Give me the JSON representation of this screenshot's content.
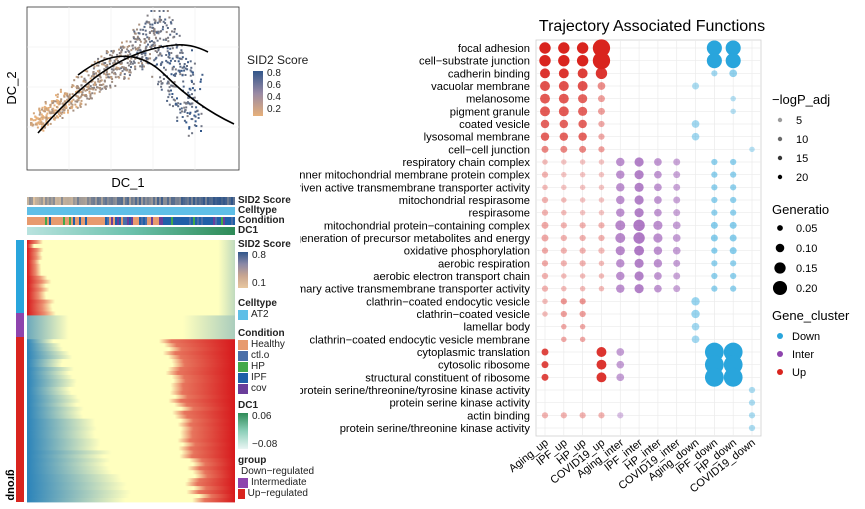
{
  "colors": {
    "down": "#29a5dc",
    "inter": "#8e44ad",
    "up": "#d9241e",
    "grad_low": "#e7b07a",
    "grad_high": "#31568a",
    "heat_blue": "#2b83ba",
    "heat_yellow": "#ffffbf",
    "heat_red": "#d7191c",
    "healthy": "#e79a6e",
    "ctlo": "#4a6ea8",
    "hp": "#43a84a",
    "ipf": "#1f5fa8",
    "cov": "#6a3d9a",
    "at2": "#5fbfe7"
  },
  "scatter": {
    "xlabel": "DC_1",
    "ylabel": "DC_2",
    "legend_title": "SID2 Score",
    "legend_ticks": [
      "0.8",
      "0.6",
      "0.4",
      "0.2"
    ]
  },
  "heatmap": {
    "annotation_labels": [
      "SID2 Score",
      "Celltype",
      "Condition",
      "DC1"
    ],
    "group_axis_label": "group",
    "legend": {
      "sid2": {
        "title": "SID2 Score",
        "ticks": [
          "0.8",
          "0.1"
        ]
      },
      "celltype": {
        "title": "Celltype",
        "items": [
          "AT2"
        ]
      },
      "condition": {
        "title": "Condition",
        "items": [
          "Healthy",
          "ctl.o",
          "HP",
          "IPF",
          "cov"
        ]
      },
      "dc1": {
        "title": "DC1",
        "ticks": [
          "0.06",
          "−0.08"
        ]
      },
      "group": {
        "title": "group",
        "items": [
          "Down−regulated",
          "Intermediate",
          "Up−regulated"
        ]
      }
    }
  },
  "legends": {
    "size_title": "−logP_adj",
    "size_ticks": [
      "5",
      "10",
      "15",
      "20"
    ],
    "gen_title": "Generatio",
    "gen_ticks": [
      "0.05",
      "0.10",
      "0.15",
      "0.20"
    ],
    "cluster_title": "Gene_cluster",
    "cluster_items": [
      "Down",
      "Inter",
      "Up"
    ]
  },
  "chart_data": {
    "type": "scatter",
    "title": "Trajectory Associated Functions",
    "columns": [
      "Aging_up",
      "IPF_up",
      "HP_up",
      "COVID19_up",
      "Aging_inter",
      "IPF_inter",
      "HP_inter",
      "COVID19_inter",
      "Aging_down",
      "IPF_down",
      "HP_down",
      "COVID19_down"
    ],
    "column_cluster": [
      "Up",
      "Up",
      "Up",
      "Up",
      "Inter",
      "Inter",
      "Inter",
      "Inter",
      "Down",
      "Down",
      "Down",
      "Down"
    ],
    "terms": [
      "focal adhesion",
      "cell−substrate junction",
      "cadherin binding",
      "vacuolar membrane",
      "melanosome",
      "pigment granule",
      "coated vesicle",
      "lysosomal membrane",
      "cell−cell junction",
      "respiratory chain complex",
      "inner mitochondrial membrane protein complex",
      "oxidoreduction−driven active transmembrane transporter activity",
      "mitochondrial respirasome",
      "respirasome",
      "mitochondrial protein−containing complex",
      "generation of precursor metabolites and energy",
      "oxidative phosphorylation",
      "aerobic respiration",
      "aerobic electron transport chain",
      "primary active transmembrane transporter activity",
      "clathrin−coated endocytic vesicle",
      "clathrin−coated vesicle",
      "lamellar body",
      "clathrin−coated endocytic vesicle membrane",
      "cytoplasmic translation",
      "cytosolic ribosome",
      "structural constituent of ribosome",
      "protein serine/threonine/tyrosine kinase activity",
      "protein serine kinase activity",
      "actin binding",
      "protein serine/threonine kinase activity"
    ],
    "generatio": [
      [
        0.1,
        0.1,
        0.1,
        0.18,
        0,
        0,
        0,
        0,
        0,
        0.15,
        0.15,
        0
      ],
      [
        0.1,
        0.1,
        0.1,
        0.18,
        0,
        0,
        0,
        0,
        0,
        0.15,
        0.15,
        0
      ],
      [
        0.08,
        0.08,
        0.08,
        0.1,
        0,
        0,
        0,
        0,
        0,
        0.03,
        0.05,
        0
      ],
      [
        0.08,
        0.08,
        0.08,
        0.05,
        0,
        0,
        0,
        0,
        0.04,
        0,
        0,
        0
      ],
      [
        0.08,
        0.08,
        0.07,
        0.04,
        0,
        0,
        0,
        0,
        0,
        0,
        0.02,
        0
      ],
      [
        0.08,
        0.08,
        0.07,
        0.04,
        0,
        0,
        0,
        0,
        0,
        0,
        0.02,
        0
      ],
      [
        0.06,
        0.06,
        0.06,
        0.03,
        0,
        0,
        0,
        0,
        0.05,
        0,
        0,
        0
      ],
      [
        0.06,
        0.06,
        0.06,
        0.03,
        0,
        0,
        0,
        0,
        0.05,
        0,
        0,
        0
      ],
      [
        0.04,
        0.04,
        0.04,
        0.03,
        0,
        0,
        0,
        0,
        0,
        0,
        0,
        0.02
      ],
      [
        0.02,
        0.02,
        0.02,
        0.02,
        0.06,
        0.07,
        0.05,
        0.04,
        0,
        0.03,
        0.03,
        0
      ],
      [
        0.03,
        0.02,
        0.02,
        0.02,
        0.06,
        0.07,
        0.05,
        0.04,
        0,
        0.03,
        0.03,
        0
      ],
      [
        0.02,
        0.02,
        0.02,
        0.02,
        0.06,
        0.07,
        0.05,
        0.04,
        0,
        0.03,
        0.03,
        0
      ],
      [
        0.03,
        0.02,
        0.02,
        0.02,
        0.06,
        0.07,
        0.05,
        0.04,
        0,
        0.03,
        0.03,
        0
      ],
      [
        0.03,
        0.02,
        0.02,
        0.02,
        0.06,
        0.07,
        0.05,
        0.04,
        0,
        0.03,
        0.03,
        0
      ],
      [
        0.04,
        0.03,
        0.03,
        0.03,
        0.08,
        0.1,
        0.07,
        0.05,
        0,
        0.04,
        0.04,
        0
      ],
      [
        0.04,
        0.03,
        0.03,
        0.03,
        0.08,
        0.1,
        0.07,
        0.05,
        0,
        0.04,
        0.04,
        0
      ],
      [
        0.03,
        0.03,
        0.03,
        0.03,
        0.07,
        0.08,
        0.06,
        0.05,
        0,
        0.03,
        0.04,
        0
      ],
      [
        0.03,
        0.03,
        0.03,
        0.02,
        0.06,
        0.07,
        0.06,
        0.04,
        0,
        0.03,
        0.03,
        0
      ],
      [
        0.03,
        0.02,
        0.02,
        0.02,
        0.06,
        0.07,
        0.05,
        0.04,
        0,
        0.03,
        0.03,
        0
      ],
      [
        0.03,
        0.02,
        0.02,
        0.02,
        0.06,
        0.07,
        0.05,
        0.04,
        0,
        0.03,
        0.03,
        0
      ],
      [
        0.02,
        0.03,
        0.03,
        0,
        0,
        0,
        0,
        0,
        0.06,
        0,
        0,
        0
      ],
      [
        0.02,
        0.03,
        0.03,
        0,
        0,
        0,
        0,
        0,
        0.06,
        0,
        0,
        0
      ],
      [
        0,
        0.02,
        0.02,
        0,
        0,
        0,
        0,
        0,
        0.05,
        0,
        0,
        0
      ],
      [
        0,
        0.02,
        0.02,
        0,
        0,
        0,
        0,
        0,
        0.05,
        0,
        0,
        0
      ],
      [
        0.04,
        0,
        0,
        0.08,
        0.05,
        0,
        0,
        0,
        0,
        0.2,
        0.2,
        0
      ],
      [
        0.04,
        0,
        0,
        0.08,
        0.05,
        0,
        0,
        0,
        0,
        0.2,
        0.2,
        0
      ],
      [
        0.04,
        0,
        0,
        0.08,
        0.05,
        0,
        0,
        0,
        0,
        0.2,
        0.2,
        0
      ],
      [
        0,
        0,
        0,
        0,
        0,
        0,
        0,
        0,
        0,
        0,
        0,
        0.03
      ],
      [
        0,
        0,
        0,
        0,
        0,
        0,
        0,
        0,
        0,
        0,
        0,
        0.03
      ],
      [
        0.03,
        0.03,
        0.03,
        0.03,
        0.03,
        0,
        0,
        0,
        0,
        0,
        0,
        0.03
      ],
      [
        0,
        0,
        0,
        0,
        0,
        0,
        0,
        0,
        0,
        0,
        0,
        0.03
      ]
    ],
    "neglogp": [
      [
        20,
        20,
        20,
        20,
        0,
        0,
        0,
        0,
        0,
        20,
        20,
        0
      ],
      [
        20,
        20,
        20,
        20,
        0,
        0,
        0,
        0,
        0,
        20,
        20,
        0
      ],
      [
        18,
        18,
        17,
        18,
        0,
        0,
        0,
        0,
        0,
        6,
        8,
        0
      ],
      [
        15,
        15,
        15,
        8,
        0,
        0,
        0,
        0,
        5,
        0,
        0,
        0
      ],
      [
        14,
        14,
        13,
        6,
        0,
        0,
        0,
        0,
        0,
        0,
        4,
        0
      ],
      [
        14,
        14,
        13,
        6,
        0,
        0,
        0,
        0,
        0,
        0,
        4,
        0
      ],
      [
        13,
        13,
        13,
        5,
        0,
        0,
        0,
        0,
        6,
        0,
        0,
        0
      ],
      [
        13,
        13,
        13,
        5,
        0,
        0,
        0,
        0,
        6,
        0,
        0,
        0
      ],
      [
        9,
        9,
        9,
        6,
        0,
        0,
        0,
        0,
        0,
        0,
        0,
        4
      ],
      [
        3,
        2,
        2,
        2,
        10,
        12,
        9,
        7,
        0,
        8,
        8,
        0
      ],
      [
        4,
        2,
        2,
        2,
        10,
        12,
        9,
        7,
        0,
        8,
        8,
        0
      ],
      [
        3,
        2,
        2,
        2,
        10,
        12,
        9,
        7,
        0,
        8,
        8,
        0
      ],
      [
        4,
        3,
        2,
        2,
        10,
        12,
        9,
        7,
        0,
        8,
        8,
        0
      ],
      [
        4,
        3,
        2,
        2,
        10,
        12,
        9,
        7,
        0,
        8,
        8,
        0
      ],
      [
        5,
        4,
        4,
        4,
        11,
        13,
        10,
        8,
        0,
        9,
        9,
        0
      ],
      [
        5,
        4,
        4,
        4,
        11,
        13,
        10,
        8,
        0,
        9,
        9,
        0
      ],
      [
        5,
        4,
        4,
        3,
        11,
        13,
        10,
        8,
        0,
        9,
        9,
        0
      ],
      [
        5,
        4,
        4,
        3,
        10,
        12,
        10,
        8,
        0,
        8,
        8,
        0
      ],
      [
        4,
        3,
        3,
        3,
        10,
        12,
        9,
        7,
        0,
        8,
        8,
        0
      ],
      [
        4,
        3,
        3,
        3,
        10,
        12,
        9,
        7,
        0,
        8,
        8,
        0
      ],
      [
        3,
        7,
        7,
        0,
        0,
        0,
        0,
        0,
        7,
        0,
        0,
        0
      ],
      [
        3,
        6,
        6,
        0,
        0,
        0,
        0,
        0,
        7,
        0,
        0,
        0
      ],
      [
        0,
        5,
        5,
        0,
        0,
        0,
        0,
        0,
        6,
        0,
        0,
        0
      ],
      [
        0,
        5,
        5,
        0,
        0,
        0,
        0,
        0,
        6,
        0,
        0,
        0
      ],
      [
        16,
        0,
        0,
        18,
        8,
        0,
        0,
        0,
        0,
        20,
        20,
        0
      ],
      [
        16,
        0,
        0,
        18,
        8,
        0,
        0,
        0,
        0,
        20,
        20,
        0
      ],
      [
        16,
        0,
        0,
        18,
        8,
        0,
        0,
        0,
        0,
        20,
        20,
        0
      ],
      [
        0,
        0,
        0,
        0,
        0,
        0,
        0,
        0,
        0,
        0,
        0,
        5
      ],
      [
        0,
        0,
        0,
        0,
        0,
        0,
        0,
        0,
        0,
        0,
        0,
        5
      ],
      [
        4,
        4,
        4,
        4,
        4,
        0,
        0,
        0,
        0,
        0,
        0,
        5
      ],
      [
        0,
        0,
        0,
        0,
        0,
        0,
        0,
        0,
        0,
        0,
        0,
        5
      ]
    ],
    "size_legend": [
      5,
      10,
      15,
      20
    ],
    "gen_legend": [
      0.05,
      0.1,
      0.15,
      0.2
    ],
    "xlabel": "",
    "ylabel": ""
  }
}
